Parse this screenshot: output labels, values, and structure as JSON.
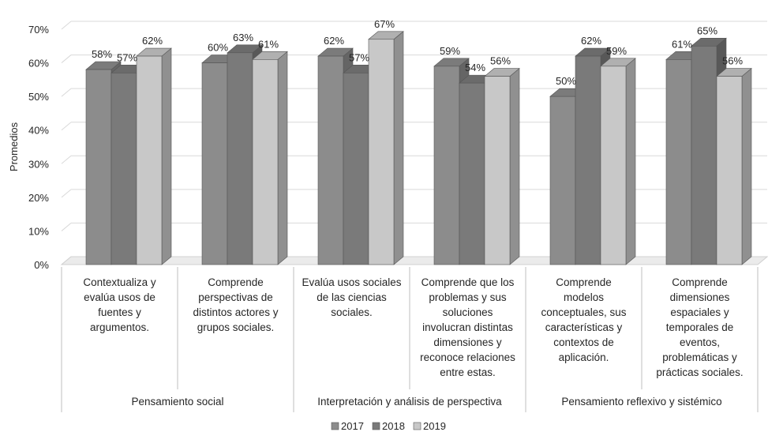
{
  "chart_data": {
    "type": "bar",
    "ylabel": "Promedios",
    "ylim": [
      0,
      0.7
    ],
    "yticks": [
      "0%",
      "10%",
      "20%",
      "30%",
      "40%",
      "50%",
      "60%",
      "70%"
    ],
    "grid": true,
    "legend_position": "bottom",
    "categories": [
      [
        "Contextualiza y",
        "evalúa usos de",
        "fuentes y",
        "argumentos."
      ],
      [
        "Comprende",
        "perspectivas de",
        "distintos actores y",
        "grupos sociales."
      ],
      [
        "Evalúa usos sociales",
        "de las ciencias",
        "sociales."
      ],
      [
        "Comprende que los",
        "problemas y sus",
        "soluciones",
        "involucran distintas",
        "dimensiones y",
        "reconoce relaciones",
        "entre estas."
      ],
      [
        "Comprende",
        "modelos",
        "conceptuales, sus",
        "características y",
        "contextos de",
        "aplicación."
      ],
      [
        "Comprende",
        "dimensiones",
        "espaciales y",
        "temporales de",
        "eventos,",
        "problemáticas y",
        "prácticas sociales."
      ]
    ],
    "groups": [
      {
        "label": "Pensamiento social",
        "span": [
          0,
          1
        ]
      },
      {
        "label": "Interpretación y análisis de perspectiva",
        "span": [
          2,
          3
        ]
      },
      {
        "label": "Pensamiento reflexivo y sistémico",
        "span": [
          4,
          5
        ]
      }
    ],
    "series": [
      {
        "name": "2017",
        "values": [
          0.58,
          0.6,
          0.62,
          0.59,
          0.5,
          0.61
        ],
        "labels": [
          "58%",
          "60%",
          "62%",
          "59%",
          "50%",
          "61%"
        ],
        "color": "#8c8c8c"
      },
      {
        "name": "2018",
        "values": [
          0.57,
          0.63,
          0.57,
          0.54,
          0.62,
          0.65
        ],
        "labels": [
          "57%",
          "63%",
          "57%",
          "54%",
          "62%",
          "65%"
        ],
        "color": "#7a7a7a"
      },
      {
        "name": "2019",
        "values": [
          0.62,
          0.61,
          0.67,
          0.56,
          0.59,
          0.56
        ],
        "labels": [
          "62%",
          "61%",
          "67%",
          "56%",
          "59%",
          "56%"
        ],
        "color": "#c8c8c8"
      }
    ]
  }
}
